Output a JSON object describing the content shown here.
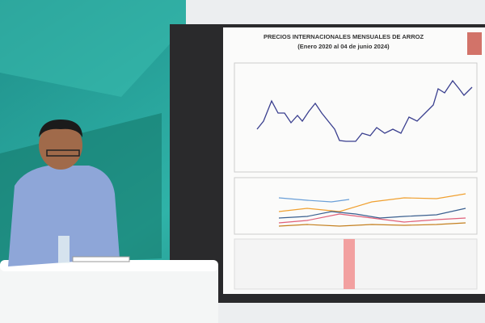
{
  "screen": {
    "title": "PRECIOS INTERNACIONALES MENSUALES DE ARROZ",
    "subtitle": "(Enero 2020 al 04 de junio 2024)"
  }
}
